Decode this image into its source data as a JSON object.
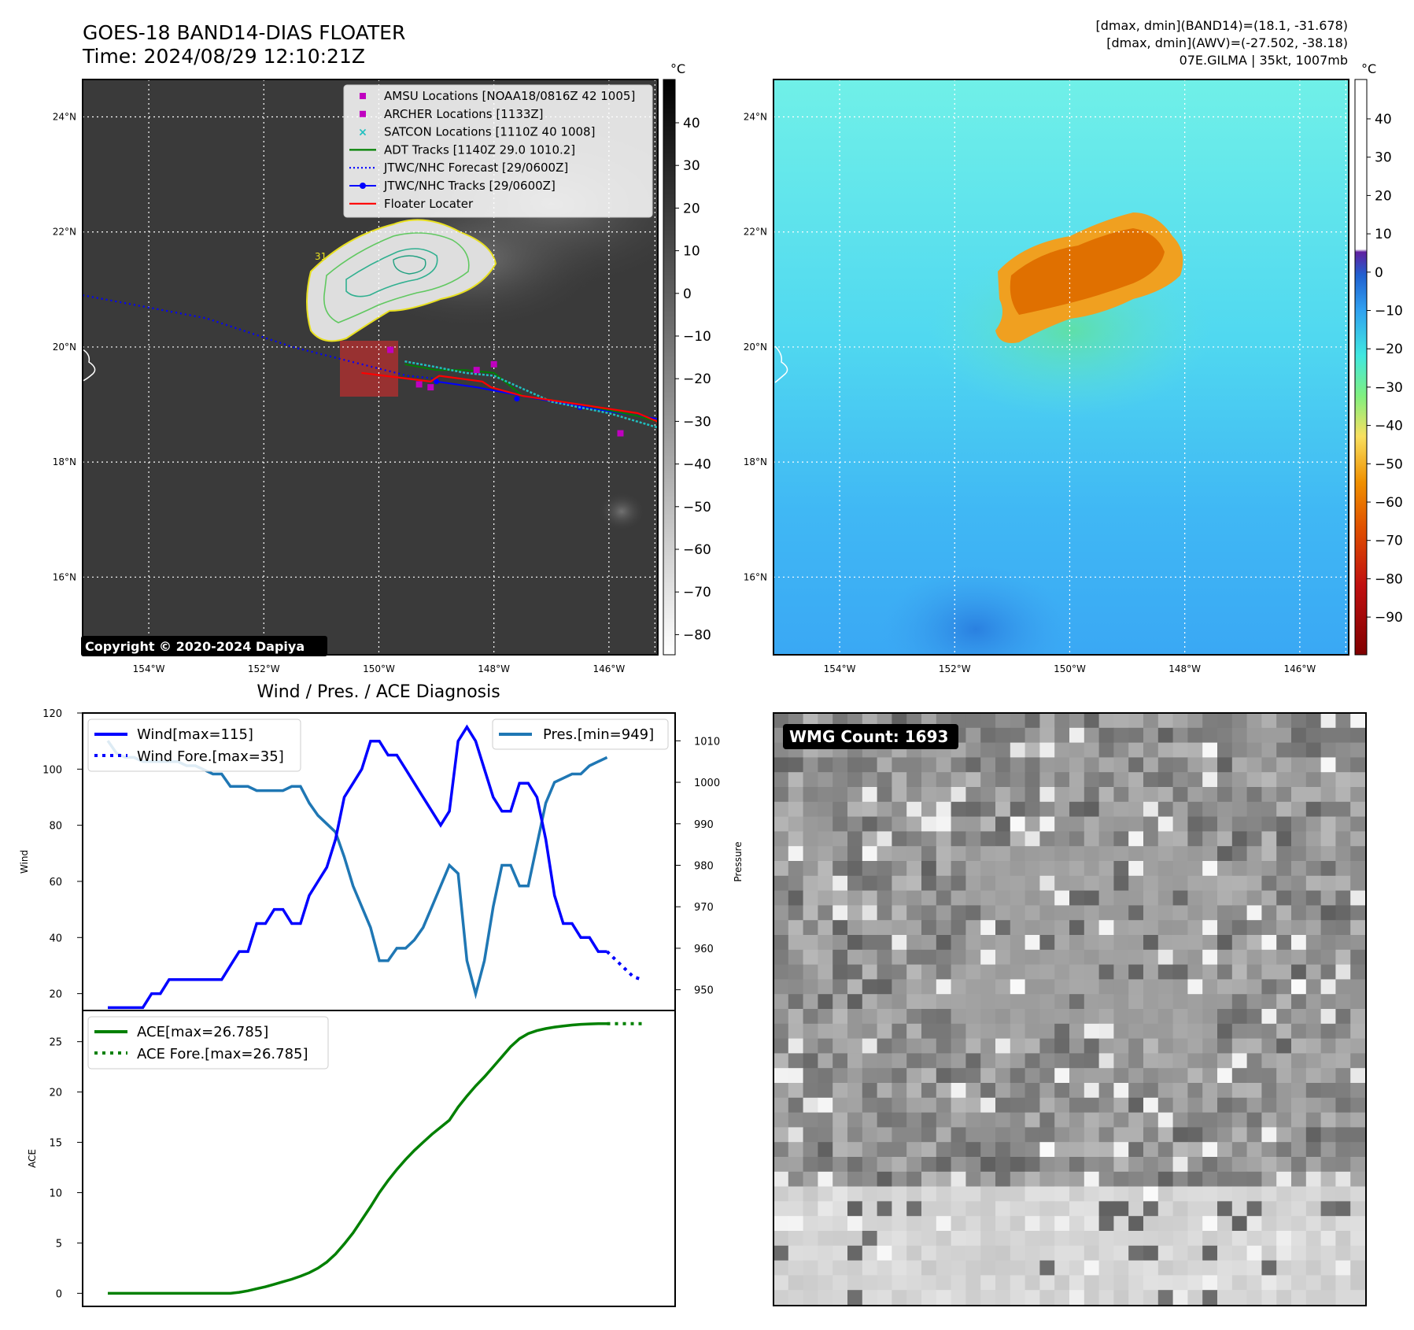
{
  "header": {
    "title_line1": "GOES-18 BAND14-DIAS FLOATER",
    "title_line2": "Time: 2024/08/29 12:10:21Z",
    "info_line1": "[dmax, dmin](BAND14)=(18.1, -31.678)",
    "info_line2": "[dmax, dmin](AWV)=(-27.502, -38.18)",
    "info_line3": "07E.GILMA | 35kt, 1007mb"
  },
  "map": {
    "lat_labels": [
      "24°N",
      "22°N",
      "20°N",
      "18°N",
      "16°N"
    ],
    "lon_labels": [
      "154°W",
      "152°W",
      "150°W",
      "148°W",
      "146°W"
    ],
    "lat_values": [
      24,
      22,
      20,
      18,
      16
    ],
    "lon_values": [
      -154,
      -152,
      -150,
      -148,
      -146
    ],
    "lat_range": [
      14.65,
      24.65
    ],
    "lon_range": [
      -155.15,
      -145.15
    ],
    "copyright": "Copyright © 2020-2024 Dapiya",
    "contour_label": "31",
    "legend": [
      {
        "label": "AMSU Locations [NOAA18/0816Z 42 1005]",
        "marker": "square",
        "color": "#c000c0"
      },
      {
        "label": "ARCHER Locations [1133Z]",
        "marker": "square",
        "color": "#c000c0"
      },
      {
        "label": "SATCON Locations [1110Z 40 1008]",
        "marker": "x",
        "color": "#20c0c0"
      },
      {
        "label": "ADT Tracks [1140Z 29.0 1010.2]",
        "marker": "line",
        "color": "#008000"
      },
      {
        "label": "JTWC/NHC Forecast [29/0600Z]",
        "marker": "dotted",
        "color": "#0000ff"
      },
      {
        "label": "JTWC/NHC Tracks [29/0600Z]",
        "marker": "line-dot",
        "color": "#0000ff"
      },
      {
        "label": "Floater Locater",
        "marker": "line",
        "color": "#ff0000"
      }
    ],
    "colorbar_unit": "°C",
    "bt_colorbar_ticks": [
      "40",
      "30",
      "20",
      "10",
      "0",
      "−10",
      "−20",
      "−30",
      "−40",
      "−50",
      "−60",
      "−70",
      "−80"
    ],
    "awv_colorbar_ticks": [
      "40",
      "30",
      "20",
      "10",
      "0",
      "−10",
      "−20",
      "−30",
      "−40",
      "−50",
      "−60",
      "−70",
      "−80",
      "−90"
    ]
  },
  "wmg": {
    "count_label": "WMG Count: 1693"
  },
  "colors": {
    "wind": "#0000ff",
    "pressure": "#1f77b4",
    "ace": "#008000",
    "floater": "#ff0000",
    "adt": "#008000",
    "satcon": "#20c0c0",
    "amsu": "#c000c0"
  },
  "chart_data": [
    {
      "type": "line",
      "title": "Wind / Pres. / ACE Diagnosis",
      "ylabel": "Wind",
      "y2label": "Pressure",
      "ylim": [
        14,
        120
      ],
      "y2lim": [
        945,
        1016.7
      ],
      "yticks": [
        20,
        40,
        60,
        80,
        100,
        120
      ],
      "y2ticks": [
        950,
        960,
        970,
        980,
        990,
        1000,
        1010
      ],
      "series": [
        {
          "name": "Wind[max=115]",
          "axis": "left",
          "style": "solid",
          "values": [
            15,
            15,
            15,
            15,
            15,
            20,
            20,
            25,
            25,
            25,
            25,
            25,
            25,
            25,
            30,
            35,
            35,
            45,
            45,
            50,
            50,
            45,
            45,
            55,
            60,
            65,
            75,
            90,
            95,
            100,
            110,
            110,
            105,
            105,
            100,
            95,
            90,
            85,
            80,
            85,
            110,
            115,
            110,
            100,
            90,
            85,
            85,
            95,
            95,
            90,
            75,
            55,
            45,
            45,
            40,
            40,
            35,
            35
          ]
        },
        {
          "name": "Wind Fore.[max=35]",
          "axis": "left",
          "style": "dotted",
          "start_index": 57,
          "values": [
            35,
            32,
            29,
            26,
            25
          ]
        },
        {
          "name": "Pres.[min=949]",
          "axis": "right",
          "style": "solid",
          "values": [
            1010,
            1007,
            1006,
            1006,
            1005,
            1005,
            1005,
            1005,
            1005,
            1004,
            1004,
            1003,
            1002,
            1002,
            999,
            999,
            999,
            998,
            998,
            998,
            998,
            999,
            999,
            995,
            992,
            990,
            988,
            982,
            975,
            970,
            965,
            957,
            957,
            960,
            960,
            962,
            965,
            970,
            975,
            980,
            978,
            957,
            949,
            957,
            970,
            980,
            980,
            975,
            975,
            985,
            995,
            1000,
            1001,
            1002,
            1002,
            1004,
            1005,
            1006
          ]
        }
      ]
    },
    {
      "type": "line",
      "ylabel": "ACE",
      "ylim": [
        -1.3,
        28.1
      ],
      "yticks": [
        0,
        5,
        10,
        15,
        20,
        25
      ],
      "series": [
        {
          "name": "ACE[max=26.785]",
          "style": "solid",
          "values": [
            0,
            0,
            0,
            0,
            0,
            0,
            0,
            0,
            0,
            0,
            0,
            0,
            0,
            0,
            0,
            0.1,
            0.25,
            0.45,
            0.65,
            0.9,
            1.15,
            1.4,
            1.7,
            2.05,
            2.5,
            3.1,
            3.9,
            4.9,
            6.0,
            7.3,
            8.6,
            10,
            11.2,
            12.3,
            13.3,
            14.2,
            15,
            15.8,
            16.5,
            17.2,
            18.5,
            19.6,
            20.6,
            21.5,
            22.5,
            23.5,
            24.5,
            25.3,
            25.8,
            26.1,
            26.3,
            26.45,
            26.55,
            26.65,
            26.72,
            26.76,
            26.785,
            26.785
          ]
        },
        {
          "name": "ACE Fore.[max=26.785]",
          "style": "dotted",
          "start_index": 57,
          "values": [
            26.785,
            26.785,
            26.785,
            26.785,
            26.785
          ]
        }
      ]
    }
  ]
}
